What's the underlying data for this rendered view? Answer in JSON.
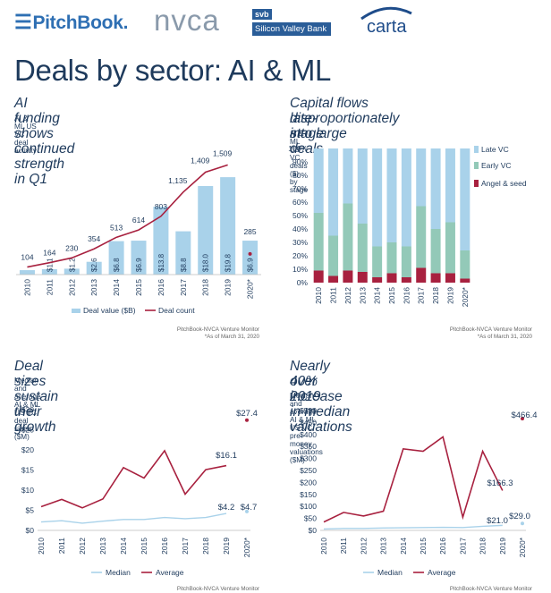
{
  "header": {
    "logos": {
      "pitchbook": "PitchBook.",
      "nvca": "nvca",
      "svb_top": "svb",
      "svb_bottom": "Silicon Valley Bank",
      "carta": "carta"
    },
    "title": "Deals by sector: AI & ML"
  },
  "colors": {
    "bar_blue": "#a9d2ea",
    "line_red": "#a8213f",
    "late_vc": "#a9d2ea",
    "early_vc": "#93c9b8",
    "angel_seed": "#a8213f",
    "median_line": "#a9d2ea"
  },
  "panels": {
    "p1": {
      "title": "AI funding shows continued strength in Q1",
      "subtitle": "AI & ML US VC deal activity",
      "source": "PitchBook-NVCA Venture Monitor",
      "note": "*As of March 31, 2020"
    },
    "p2": {
      "title_line1": "Capital flows disproportionately into large",
      "title_line2": "late-stage deals",
      "subtitle": "AI & ML US VC deals ($) by stage",
      "source": "PitchBook-NVCA Venture Monitor",
      "note": "*As of March 31, 2020"
    },
    "p3": {
      "title": "Deal sizes sustain their growth",
      "subtitle": "Median and average AI & ML US VC deal sizes ($M)",
      "source": "PitchBook-NVCA Venture Monitor"
    },
    "p4": {
      "title_line1": "Nearly 40% increase in median valuations",
      "title_line2": "over 2019",
      "subtitle": "Median and average AI & ML US VC pre-money valuations ($M)",
      "source": "PitchBook-NVCA Venture Monitor"
    }
  },
  "chart_data": [
    {
      "type": "bar",
      "categories": [
        "2010",
        "2011",
        "2012",
        "2013",
        "2014",
        "2015",
        "2016",
        "2017",
        "2018",
        "2019",
        "2020*"
      ],
      "series": [
        {
          "name": "Deal value ($B)",
          "type": "bar",
          "values": [
            0.9,
            1.1,
            1.2,
            2.6,
            6.8,
            6.9,
            13.8,
            8.8,
            18.0,
            19.8,
            6.9
          ],
          "labels": [
            "",
            "$1.1",
            "$1.2",
            "$2.6",
            "$6.8",
            "$6.9",
            "$13.8",
            "$8.8",
            "$18.0",
            "$19.8",
            "$6.9"
          ]
        },
        {
          "name": "Deal count",
          "type": "line",
          "values": [
            104,
            164,
            230,
            354,
            513,
            614,
            803,
            1135,
            1409,
            1509,
            285
          ],
          "labels": [
            "104",
            "164",
            "230",
            "354",
            "513",
            "614",
            "803",
            "1,135",
            "1,409",
            "1,509",
            "285"
          ]
        }
      ],
      "legend": [
        "Deal value ($B)",
        "Deal count"
      ]
    },
    {
      "type": "bar",
      "stacked": true,
      "percent": true,
      "categories": [
        "2010",
        "2011",
        "2012",
        "2013",
        "2014",
        "2015",
        "2016",
        "2017",
        "2018",
        "2019",
        "2020*"
      ],
      "series": [
        {
          "name": "Angel & seed",
          "values": [
            9,
            5,
            9,
            8,
            4,
            7,
            4,
            11,
            7,
            7,
            3
          ]
        },
        {
          "name": "Early VC",
          "values": [
            43,
            30,
            50,
            36,
            23,
            23,
            23,
            46,
            33,
            38,
            21
          ]
        },
        {
          "name": "Late VC",
          "values": [
            48,
            65,
            41,
            56,
            73,
            70,
            73,
            43,
            60,
            55,
            76
          ]
        }
      ],
      "yticks": [
        "0%",
        "10%",
        "20%",
        "30%",
        "40%",
        "50%",
        "60%",
        "70%",
        "80%",
        "90%",
        "100%"
      ],
      "legend": [
        "Late VC",
        "Early VC",
        "Angel & seed"
      ]
    },
    {
      "type": "line",
      "categories": [
        "2010",
        "2011",
        "2012",
        "2013",
        "2014",
        "2015",
        "2016",
        "2017",
        "2018",
        "2019",
        "2020*"
      ],
      "series": [
        {
          "name": "Median",
          "values": [
            2.1,
            2.4,
            1.8,
            2.3,
            2.7,
            2.7,
            3.2,
            2.9,
            3.2,
            4.2,
            4.7
          ]
        },
        {
          "name": "Average",
          "values": [
            5.9,
            7.7,
            5.6,
            7.8,
            15.6,
            13.0,
            19.8,
            9.0,
            15.1,
            16.1,
            27.4
          ]
        }
      ],
      "labels": {
        "median_2019": "$4.2",
        "median_2020": "$4.7",
        "average_2019": "$16.1",
        "average_2020": "$27.4"
      },
      "ylim": [
        0,
        30
      ],
      "yticks": [
        "$0",
        "$5",
        "$10",
        "$15",
        "$20",
        "$25",
        "$30"
      ],
      "legend": [
        "Median",
        "Average"
      ]
    },
    {
      "type": "line",
      "categories": [
        "2010",
        "2011",
        "2012",
        "2013",
        "2014",
        "2015",
        "2016",
        "2017",
        "2018",
        "2019",
        "2020*"
      ],
      "series": [
        {
          "name": "Median",
          "values": [
            6,
            8,
            8,
            10,
            11,
            12,
            13,
            12,
            17,
            21.0,
            29.0
          ]
        },
        {
          "name": "Average",
          "values": [
            35,
            75,
            60,
            80,
            340,
            330,
            390,
            55,
            330,
            166.3,
            466.4
          ]
        }
      ],
      "labels": {
        "median_2019": "$21.0",
        "median_2020": "$29.0",
        "average_2019": "$166.3",
        "average_2020": "$466.4"
      },
      "ylim": [
        0,
        500
      ],
      "yticks": [
        "$0",
        "$50",
        "$100",
        "$150",
        "$200",
        "$250",
        "$300",
        "$350",
        "$400",
        "$450",
        "$500"
      ],
      "legend": [
        "Median",
        "Average"
      ]
    }
  ]
}
